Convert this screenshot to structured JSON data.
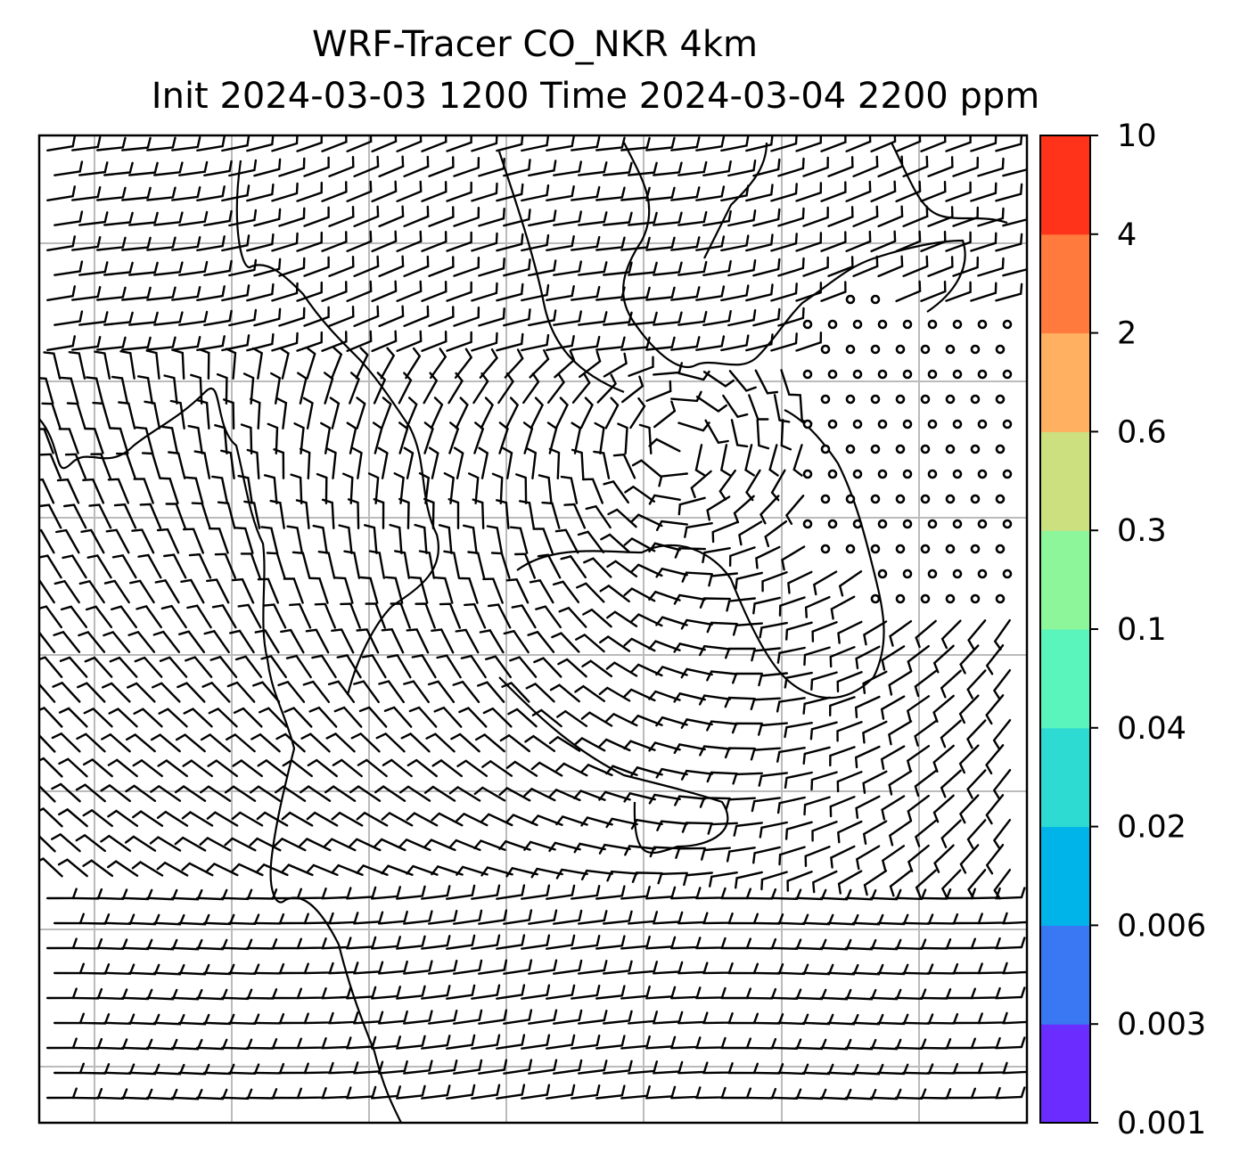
{
  "title_line1": "WRF-Tracer CO_NKR 4km",
  "title_line2": "Init 2024-03-03 1200 Time 2024-03-04 2200 ppm",
  "colorbar": {
    "levels": [
      "0.001",
      "0.003",
      "0.006",
      "0.02",
      "0.04",
      "0.1",
      "0.3",
      "0.6",
      "2",
      "4",
      "10"
    ],
    "colors": [
      "#6a2cff",
      "#3a77f2",
      "#00b4ea",
      "#2ddbd3",
      "#5af5bd",
      "#8df59a",
      "#cde07f",
      "#ffb060",
      "#ff7a3c",
      "#ff3319"
    ]
  },
  "gridline_color": "#bbbbbb",
  "map": {
    "features": [
      "wind-barbs",
      "coastlines",
      "lat-lon-gridlines",
      "calm-wind-circles"
    ]
  }
}
